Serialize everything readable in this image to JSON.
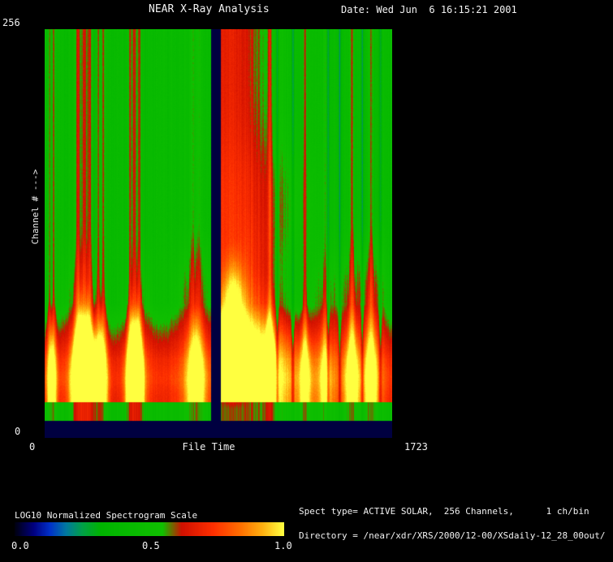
{
  "header": {
    "title": "NEAR X-Ray Analysis",
    "date": "Date: Wed Jun  6 16:15:21 2001"
  },
  "y_axis": {
    "max_label": "256",
    "min_label": "0",
    "title": "Channel # --->"
  },
  "x_axis": {
    "min_label": "0",
    "title": "File Time",
    "max_label": "1723"
  },
  "colorbar": {
    "title": "LOG10 Normalized Spectrogram Scale",
    "ticks": [
      "0.0",
      "0.5",
      "1.0"
    ]
  },
  "info": {
    "line1": "Spect type= ACTIVE SOLAR,  256 Channels,      1 ch/bin",
    "line2": "Directory = /near/xdr/XRS/2000/12-00/XSdaily-12_28_00out/"
  },
  "colors": {
    "background": "#000000",
    "text": "#f2f2f2"
  },
  "chart_data": {
    "type": "heatmap",
    "title": "NEAR X-Ray Analysis",
    "xlabel": "File Time",
    "ylabel": "Channel #",
    "xlim": [
      0,
      1723
    ],
    "ylim": [
      0,
      256
    ],
    "channels": 256,
    "channels_per_bin": 1,
    "spect_type": "ACTIVE SOLAR",
    "colorbar": {
      "label": "LOG10 Normalized Spectrogram Scale",
      "range": [
        0.0,
        1.0
      ],
      "ticks": [
        0.0,
        0.5,
        1.0
      ]
    },
    "colormap_stops": [
      [
        0.0,
        "#000010"
      ],
      [
        0.07,
        "#000080"
      ],
      [
        0.13,
        "#0030c8"
      ],
      [
        0.19,
        "#0078a0"
      ],
      [
        0.25,
        "#00a048"
      ],
      [
        0.32,
        "#00b400"
      ],
      [
        0.55,
        "#10c000"
      ],
      [
        0.62,
        "#d01000"
      ],
      [
        0.74,
        "#ff3000"
      ],
      [
        0.84,
        "#ff7000"
      ],
      [
        0.92,
        "#ffb010"
      ],
      [
        1.0,
        "#ffff40"
      ]
    ],
    "background_value": 0.44,
    "band": {
      "y_start": 0.7,
      "y_full": 0.84,
      "value": 0.67,
      "peak_y": 0.89,
      "peak_add": 0.04,
      "y_end": 0.952,
      "bottom_value": 0.45
    },
    "gap_x": [
      0.477,
      0.507
    ],
    "gap_color": "#000040",
    "streaks": [
      {
        "x": 0.013,
        "w": 1.2,
        "s": 0.15
      },
      {
        "x": 0.025,
        "w": 1.2,
        "s": 0.15
      },
      {
        "x": 0.095,
        "w": 2.2,
        "s": 0.2
      },
      {
        "x": 0.113,
        "w": 2.6,
        "s": 0.22
      },
      {
        "x": 0.129,
        "w": 2.0,
        "s": 0.19
      },
      {
        "x": 0.153,
        "w": 1.6,
        "s": 0.17
      },
      {
        "x": 0.168,
        "w": 1.6,
        "s": 0.18
      },
      {
        "x": 0.245,
        "w": 1.6,
        "s": 0.17
      },
      {
        "x": 0.258,
        "w": 2.0,
        "s": 0.2
      },
      {
        "x": 0.271,
        "w": 1.6,
        "s": 0.17
      },
      {
        "x": 0.425,
        "w": 2.2,
        "s": 0.11
      },
      {
        "x": 0.443,
        "w": 2.2,
        "s": 0.11
      },
      {
        "x": 0.647,
        "w": 1.6,
        "s": 0.17
      },
      {
        "x": 0.748,
        "w": 1.5,
        "s": 0.15
      },
      {
        "x": 0.806,
        "w": 1.5,
        "s": 0.11
      },
      {
        "x": 0.883,
        "w": 1.8,
        "s": 0.17
      },
      {
        "x": 0.938,
        "w": 1.8,
        "s": 0.15
      }
    ],
    "plumes": [
      {
        "x": 0.105,
        "w": 16,
        "s": 0.16,
        "y0": 0.6
      },
      {
        "x": 0.27,
        "w": 12,
        "s": 0.12,
        "y0": 0.62
      },
      {
        "x": 0.43,
        "w": 18,
        "s": 0.15,
        "y0": 0.58
      },
      {
        "x": 0.6,
        "w": 22,
        "s": 0.1,
        "y0": 0.55
      },
      {
        "x": 0.81,
        "w": 16,
        "s": 0.12,
        "y0": 0.6
      },
      {
        "x": 0.9,
        "w": 15,
        "s": 0.15,
        "y0": 0.58
      },
      {
        "x": 0.955,
        "w": 10,
        "s": 0.12,
        "y0": 0.58
      }
    ],
    "dark_streaks": [
      {
        "x": 0.668,
        "w": 1.2,
        "s": 0.22
      },
      {
        "x": 0.713,
        "w": 1.2,
        "s": 0.22
      },
      {
        "x": 0.815,
        "w": 1.2,
        "s": 0.2
      },
      {
        "x": 0.848,
        "w": 1.2,
        "s": 0.2
      },
      {
        "x": 0.913,
        "w": 1.2,
        "s": 0.18
      },
      {
        "x": 0.965,
        "w": 1.2,
        "s": 0.18
      }
    ],
    "flame": {
      "x": 0.53,
      "core_x": 0.542,
      "core_sigma": 9,
      "core_amp": 0.3,
      "top_sigma": 34,
      "base_amp": 0.24,
      "bulge": {
        "y": 0.45,
        "sigma": 0.18,
        "add_sigma": 16,
        "add_amp": 0.06
      },
      "bottom": {
        "add_sigma": 22,
        "add_amp": 0.28
      }
    }
  }
}
